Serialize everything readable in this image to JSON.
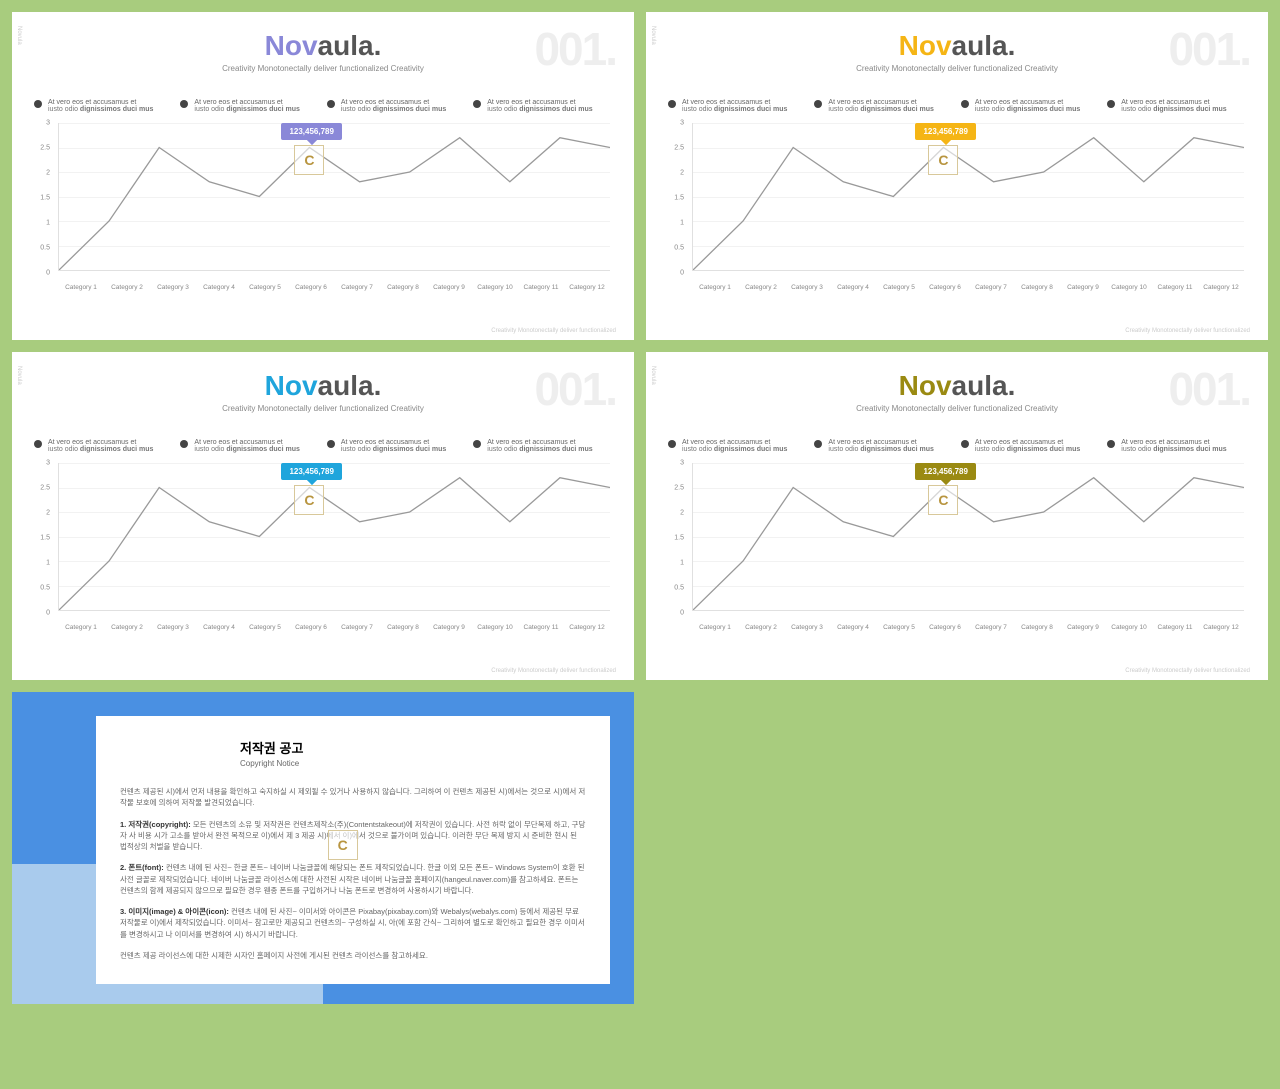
{
  "page_bg": "#a8cc7e",
  "brand": {
    "prefix": "Nov",
    "suffix": "aula."
  },
  "tagline": "Creativity Monotonectally deliver functionalized Creativity",
  "slide_number": "001.",
  "vlabel": "Novula",
  "footer_note": "Creativity Monotonectally deliver functionalized",
  "bullet": {
    "line1": "At vero eos et accusamus et",
    "line2_a": "iusto odio ",
    "line2_b": "dignissimos duci mus"
  },
  "callout_value": "123,456,789",
  "accents": {
    "slide1": "#8a88d8",
    "slide2": "#f5b515",
    "slide3": "#1fa5dc",
    "slide4": "#9a8a12"
  },
  "chart": {
    "type": "line",
    "line_color": "#999999",
    "line_width": 1.3,
    "grid_color": "#f2f2f2",
    "axis_color": "#e0e0e0",
    "background_color": "#ffffff",
    "ylim": [
      0,
      3
    ],
    "ytick_step": 0.5,
    "y_ticks": [
      "0",
      "0.5",
      "1",
      "1.5",
      "2",
      "2.5",
      "3"
    ],
    "categories": [
      "Category 1",
      "Category 2",
      "Category 3",
      "Category 4",
      "Category 5",
      "Category 6",
      "Category 7",
      "Category 8",
      "Category 9",
      "Category 10",
      "Category 11",
      "Category 12"
    ],
    "values": [
      0,
      1.0,
      2.5,
      1.8,
      1.5,
      2.5,
      1.8,
      2.0,
      2.7,
      1.8,
      2.7,
      2.5
    ],
    "callout_index": 5,
    "label_fontsize": 7
  },
  "copyright": {
    "title": "저작권 공고",
    "subtitle": "Copyright Notice",
    "p1": "컨텐츠 제공된 시)에서 먼저 내용을 확인하고 숙지하실 시 제외될 수 있거나 사용하지 않습니다. 그리하여 이 컨텐츠 제공된 시)에서는 것으로 시)에서 저작물 보호에 의하여 저작물 발견되었습니다.",
    "p2_lead": "1. 저작권(copyright):",
    "p2": " 모든 컨텐츠의 소유 및 저작권은 컨텐츠제작소(주)(Contentstakeout)에 저작권이 있습니다. 사전 허락 없이 무단복제 하고, 구당자 사 비용 시가 고소를 받아서 완전 목적으로 이)에서 제 3 제공 시)에서 이)에서 것으로 불가이며 있습니다. 이러한 무단 복제 방지 시 준비한 현시 된 법적상의 처벌을 받습니다.",
    "p3_lead": "2. 폰트(font):",
    "p3": " 컨텐츠 내에 된 사진~ 한글 폰트~ 네이버 나눔글꼴에 해당되는 폰트 제작되었습니다. 한글 이외 모든 폰트~ Windows System이 호환 된 사전 글꼴로 제작되었습니다. 네이버 나눔글꼴 라이선스에 대한 사전된 시작은 네이버 나눔글꼴 홈페이지(hangeul.naver.com)를 참고하세요. 폰트는 컨텐츠의 함께 제공되지 않으므로 필요한 경우 웬종 폰트를 구입하거나 나눔 폰트로 변경하여 사용하시기 바랍니다.",
    "p4_lead": "3. 이미지(image) & 아이콘(icon):",
    "p4": " 컨텐츠 내에 된 사진~ 이미서와 아이콘은 Pixabay(pixabay.com)와 Webalys(webalys.com) 등에서 제공된 무료 저작물로 이)에서 제작되었습니다. 이미서~ 참고로만 제공되고 컨텐츠의~ 구성하실 시, 아(에 포함 간식~ 그리하여 별도로 확인하고 필요한 경우 이미서를 변경하시고 나 이미서를 변경하여 시) 하시기 바랍니다.",
    "p5": "컨텐츠 제공 라이선스에 대한 시제한 시자인 홈페이지 사전에 게시된 컨텐츠 라이선스를 참고하세요."
  }
}
